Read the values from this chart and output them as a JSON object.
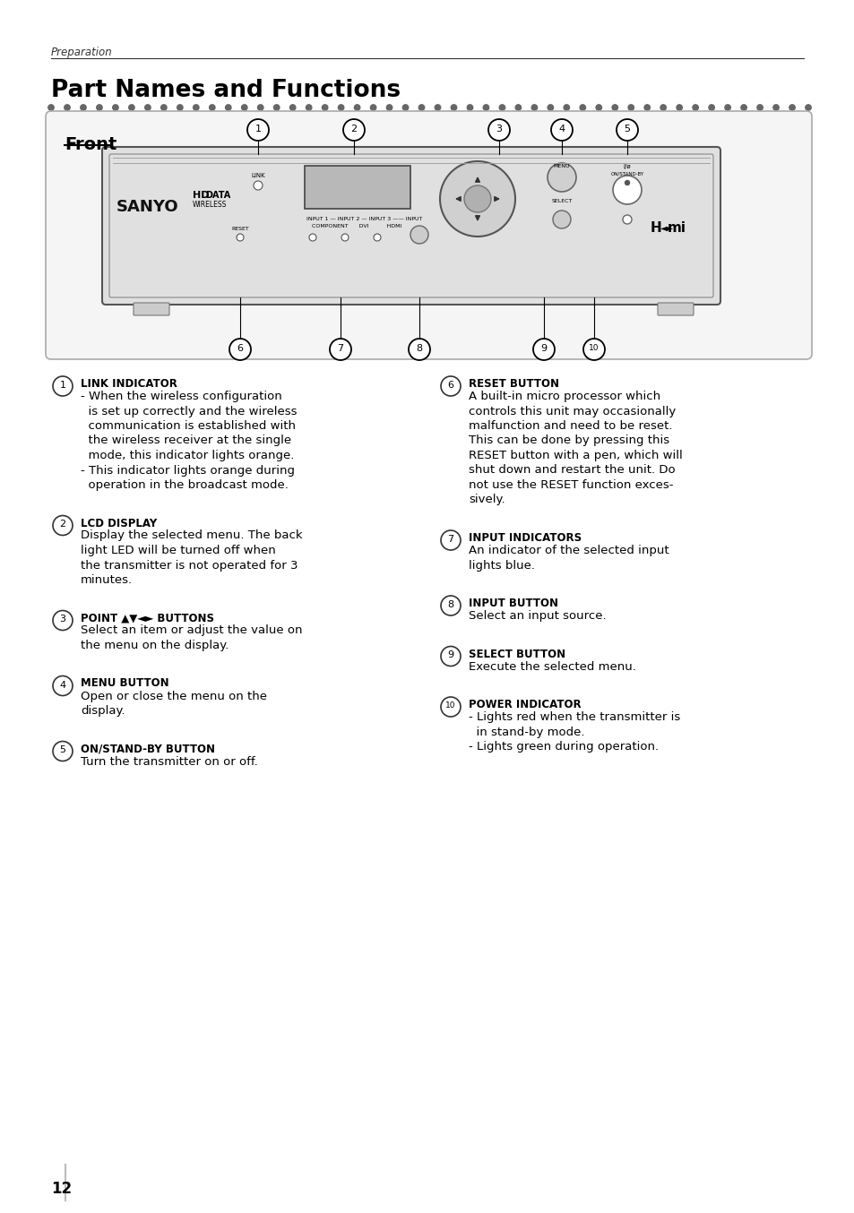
{
  "bg_color": "#ffffff",
  "header_italic": "Preparation",
  "title": "Part Names and Functions",
  "section_label": "Front",
  "numbered_items_left": [
    {
      "num": "1",
      "title": "LINK INDICATOR",
      "body": [
        "- When the wireless configuration",
        "  is set up correctly and the wireless",
        "  communication is established with",
        "  the wireless receiver at the single",
        "  mode, this indicator lights orange.",
        "- This indicator lights orange during",
        "  operation in the broadcast mode."
      ]
    },
    {
      "num": "2",
      "title": "LCD DISPLAY",
      "body": [
        "Display the selected menu. The back",
        "light LED will be turned off when",
        "the transmitter is not operated for 3",
        "minutes."
      ]
    },
    {
      "num": "3",
      "title": "POINT ▲▼◄► BUTTONS",
      "body": [
        "Select an item or adjust the value on",
        "the menu on the display."
      ]
    },
    {
      "num": "4",
      "title": "MENU BUTTON",
      "body": [
        "Open or close the menu on the",
        "display."
      ]
    },
    {
      "num": "5",
      "title": "ON/STAND-BY BUTTON",
      "body": [
        "Turn the transmitter on or off."
      ]
    }
  ],
  "numbered_items_right": [
    {
      "num": "6",
      "title": "RESET BUTTON",
      "body": [
        "A built-in micro processor which",
        "controls this unit may occasionally",
        "malfunction and need to be reset.",
        "This can be done by pressing this",
        "RESET button with a pen, which will",
        "shut down and restart the unit. Do",
        "not use the RESET function exces-",
        "sively."
      ]
    },
    {
      "num": "7",
      "title": "INPUT INDICATORS",
      "body": [
        "An indicator of the selected input",
        "lights blue."
      ]
    },
    {
      "num": "8",
      "title": "INPUT BUTTON",
      "body": [
        "Select an input source."
      ]
    },
    {
      "num": "9",
      "title": "SELECT BUTTON",
      "body": [
        "Execute the selected menu."
      ]
    },
    {
      "num": "10",
      "title": "POWER INDICATOR",
      "body": [
        "- Lights red when the transmitter is",
        "  in stand-by mode.",
        "- Lights green during operation."
      ]
    }
  ],
  "page_number": "12"
}
